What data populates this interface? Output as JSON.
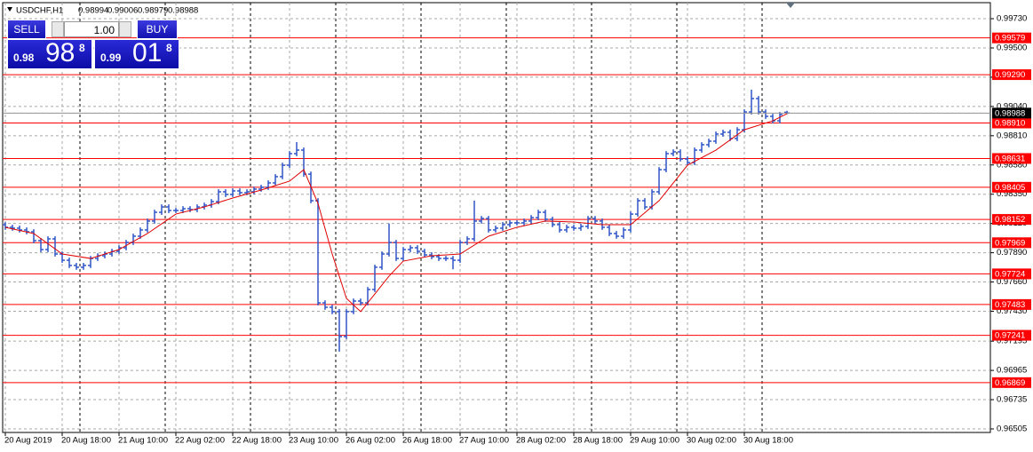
{
  "chart_data": {
    "type": "ohlc",
    "title": "USDCHF,H1",
    "categories": [
      "20 Aug 2019",
      null,
      null,
      null,
      null,
      null,
      null,
      null,
      "20 Aug 18:00",
      null,
      null,
      null,
      null,
      null,
      null,
      null,
      "21 Aug 10:00",
      null,
      null,
      null,
      null,
      null,
      null,
      null,
      "22 Aug 02:00",
      null,
      null,
      null,
      null,
      null,
      null,
      null,
      "22 Aug 18:00",
      null,
      null,
      null,
      null,
      null,
      null,
      null,
      "23 Aug 10:00",
      null,
      null,
      null,
      null,
      null,
      null,
      null,
      "26 Aug 02:00",
      null,
      null,
      null,
      null,
      null,
      null,
      null,
      "26 Aug 18:00",
      null,
      null,
      null,
      null,
      null,
      null,
      null,
      "27 Aug 10:00",
      null,
      null,
      null,
      null,
      null,
      null,
      null,
      "28 Aug 02:00",
      null,
      null,
      null,
      null,
      null,
      null,
      null,
      "28 Aug 18:00",
      null,
      null,
      null,
      null,
      null,
      null,
      null,
      "29 Aug 10:00",
      null,
      null,
      null,
      null,
      null,
      null,
      null,
      "30 Aug 02:00",
      null,
      null,
      null,
      null,
      null,
      null,
      null,
      "30 Aug 18:00",
      null,
      null,
      null,
      null,
      null,
      null
    ],
    "open": [
      0.9811,
      0.9809,
      0.98083,
      0.98069,
      0.98055,
      0.97985,
      0.97915,
      0.97999,
      0.9788,
      0.97831,
      0.9779,
      0.97776,
      0.9779,
      0.97845,
      0.97866,
      0.9788,
      0.97901,
      0.97929,
      0.97971,
      0.9802,
      0.98069,
      0.98139,
      0.98208,
      0.9825,
      0.98222,
      0.98222,
      0.98236,
      0.98229,
      0.9825,
      0.98264,
      0.98292,
      0.98369,
      0.98348,
      0.98376,
      0.98362,
      0.98369,
      0.9839,
      0.98404,
      0.98439,
      0.98488,
      0.98578,
      0.98669,
      0.98697,
      0.98508,
      0.98299,
      0.97496,
      0.97461,
      0.97427,
      0.97231,
      0.97427,
      0.9751,
      0.97496,
      0.97601,
      0.97776,
      0.9788,
      0.97971,
      0.97845,
      0.97915,
      0.97929,
      0.97901,
      0.97873,
      0.97859,
      0.97845,
      0.97845,
      0.97831,
      0.97971,
      0.97999,
      0.98139,
      0.98159,
      0.98069,
      0.98083,
      0.98111,
      0.98125,
      0.98125,
      0.98139,
      0.98166,
      0.98208,
      0.98153,
      0.98111,
      0.98069,
      0.9809,
      0.98083,
      0.98097,
      0.98159,
      0.98139,
      0.9809,
      0.98041,
      0.9802,
      0.98069,
      0.98194,
      0.98299,
      0.9825,
      0.98369,
      0.98543,
      0.98669,
      0.98683,
      0.98627,
      0.98599,
      0.98697,
      0.98739,
      0.98767,
      0.98823,
      0.98837,
      0.98788,
      0.98857,
      0.98997,
      0.99102,
      0.98997,
      0.98962,
      0.98927,
      0.98994
    ],
    "high": [
      0.9813,
      0.9811,
      0.98103,
      0.98089,
      0.98075,
      0.98005,
      0.98019,
      0.98019,
      0.979,
      0.97851,
      0.9781,
      0.9781,
      0.97865,
      0.97886,
      0.979,
      0.97921,
      0.97949,
      0.97991,
      0.9804,
      0.98089,
      0.98159,
      0.98228,
      0.9827,
      0.9827,
      0.98242,
      0.98256,
      0.98256,
      0.9827,
      0.98284,
      0.98312,
      0.98389,
      0.98389,
      0.98396,
      0.98396,
      0.98389,
      0.9841,
      0.98424,
      0.98459,
      0.98508,
      0.98598,
      0.98689,
      0.9876,
      0.98717,
      0.98528,
      0.98319,
      0.97516,
      0.97481,
      0.97447,
      0.97447,
      0.9753,
      0.9753,
      0.97621,
      0.97796,
      0.979,
      0.9812,
      0.97991,
      0.97935,
      0.97949,
      0.97949,
      0.97921,
      0.97893,
      0.97879,
      0.97865,
      0.97865,
      0.97991,
      0.98019,
      0.983,
      0.98179,
      0.98179,
      0.98103,
      0.98131,
      0.98145,
      0.98145,
      0.98159,
      0.98186,
      0.98228,
      0.98228,
      0.98173,
      0.98131,
      0.9811,
      0.9811,
      0.98117,
      0.98179,
      0.98179,
      0.98159,
      0.9811,
      0.98061,
      0.98089,
      0.98214,
      0.98319,
      0.98319,
      0.98389,
      0.98563,
      0.98689,
      0.98703,
      0.98703,
      0.98647,
      0.98717,
      0.98759,
      0.98787,
      0.98843,
      0.98857,
      0.98857,
      0.98877,
      0.99017,
      0.99172,
      0.99122,
      0.99017,
      0.98982,
      0.98996,
      0.99006
    ],
    "low": [
      0.9807,
      0.98063,
      0.98049,
      0.98035,
      0.97965,
      0.97895,
      0.97895,
      0.9786,
      0.97811,
      0.9777,
      0.97756,
      0.97756,
      0.9777,
      0.97825,
      0.97846,
      0.9786,
      0.97881,
      0.97909,
      0.97951,
      0.98,
      0.98049,
      0.98119,
      0.98188,
      0.98202,
      0.98202,
      0.98202,
      0.98209,
      0.98209,
      0.9823,
      0.98244,
      0.98272,
      0.98328,
      0.98328,
      0.98342,
      0.98342,
      0.98349,
      0.9837,
      0.98384,
      0.98419,
      0.98468,
      0.98558,
      0.98649,
      0.98488,
      0.98279,
      0.97476,
      0.97441,
      0.97407,
      0.97112,
      0.97211,
      0.97407,
      0.97476,
      0.97476,
      0.97581,
      0.97756,
      0.9786,
      0.97825,
      0.97825,
      0.97895,
      0.97881,
      0.97853,
      0.97839,
      0.97825,
      0.97825,
      0.9776,
      0.97811,
      0.97951,
      0.97979,
      0.98119,
      0.98049,
      0.98049,
      0.98063,
      0.98091,
      0.98105,
      0.98105,
      0.98119,
      0.98146,
      0.98133,
      0.98091,
      0.98049,
      0.98049,
      0.98063,
      0.98063,
      0.98077,
      0.98119,
      0.9807,
      0.98021,
      0.98,
      0.98,
      0.98049,
      0.98174,
      0.9823,
      0.9823,
      0.98349,
      0.98523,
      0.98649,
      0.98607,
      0.98579,
      0.98579,
      0.98677,
      0.98719,
      0.98747,
      0.98803,
      0.98768,
      0.98768,
      0.98837,
      0.98977,
      0.98977,
      0.98942,
      0.98907,
      0.98907,
      0.98979
    ],
    "close": [
      0.9809,
      0.98083,
      0.98069,
      0.98055,
      0.97985,
      0.97915,
      0.97999,
      0.9788,
      0.97831,
      0.9779,
      0.97776,
      0.9779,
      0.97845,
      0.97866,
      0.9788,
      0.97901,
      0.97929,
      0.97971,
      0.9802,
      0.98069,
      0.98139,
      0.98208,
      0.9825,
      0.98222,
      0.98222,
      0.98236,
      0.98229,
      0.9825,
      0.98264,
      0.98292,
      0.98369,
      0.98348,
      0.98376,
      0.98362,
      0.98369,
      0.9839,
      0.98404,
      0.98439,
      0.98488,
      0.98578,
      0.98669,
      0.98697,
      0.98508,
      0.98299,
      0.97496,
      0.97461,
      0.97427,
      0.97231,
      0.97427,
      0.9751,
      0.97496,
      0.97601,
      0.97776,
      0.9788,
      0.97971,
      0.97845,
      0.97915,
      0.97929,
      0.97901,
      0.97873,
      0.97859,
      0.97845,
      0.97845,
      0.97831,
      0.97971,
      0.97999,
      0.98139,
      0.98159,
      0.98069,
      0.98083,
      0.98111,
      0.98125,
      0.98125,
      0.98139,
      0.98166,
      0.98208,
      0.98153,
      0.98111,
      0.98069,
      0.9809,
      0.98083,
      0.98097,
      0.98159,
      0.98139,
      0.9809,
      0.98041,
      0.9802,
      0.98069,
      0.98194,
      0.98299,
      0.9825,
      0.98369,
      0.98543,
      0.98669,
      0.98683,
      0.98627,
      0.98599,
      0.98697,
      0.98739,
      0.98767,
      0.98823,
      0.98837,
      0.98788,
      0.98857,
      0.98997,
      0.99102,
      0.98997,
      0.98962,
      0.98927,
      0.98976,
      0.98988
    ],
    "color": "#2f56c8",
    "ylim": [
      0.96477,
      0.99856
    ],
    "yticks": [
      {
        "value": 0.9973,
        "label": "0.99730"
      },
      {
        "value": 0.995,
        "label": "0.99500"
      },
      {
        "value": 0.9927,
        "label": "0.99270"
      },
      {
        "value": 0.9904,
        "label": "0.99040"
      },
      {
        "value": 0.9881,
        "label": "0.98810"
      },
      {
        "value": 0.9858,
        "label": "0.98580"
      },
      {
        "value": 0.9835,
        "label": "0.98350"
      },
      {
        "value": 0.9812,
        "label": "0.98120"
      },
      {
        "value": 0.9789,
        "label": "0.97890"
      },
      {
        "value": 0.9766,
        "label": "0.97660"
      },
      {
        "value": 0.9743,
        "label": "0.97430"
      },
      0.97195,
      0.96965,
      0.96735,
      0.96505
    ],
    "grid": true,
    "grid_color": "#a8a8a8",
    "moving_average": {
      "color": "#e00000",
      "x": [
        0,
        4,
        8,
        12,
        16,
        20,
        24,
        28,
        32,
        36,
        40,
        42,
        44,
        46,
        48,
        50,
        52,
        54,
        56,
        60,
        64,
        68,
        72,
        76,
        80,
        84,
        88,
        92,
        96,
        100,
        104,
        108,
        110
      ],
      "values": [
        0.9809,
        0.98041,
        0.9788,
        0.97845,
        0.97915,
        0.98041,
        0.98194,
        0.9825,
        0.9832,
        0.98383,
        0.98453,
        0.98543,
        0.98278,
        0.9788,
        0.97531,
        0.97427,
        0.97566,
        0.97706,
        0.97824,
        0.97866,
        0.9788,
        0.9802,
        0.9809,
        0.98139,
        0.98132,
        0.98111,
        0.98111,
        0.98299,
        0.98578,
        0.98697,
        0.98857,
        0.98927,
        0.98983
      ]
    },
    "levels": [
      0.99579,
      {
        "value": 0.9929,
        "label": "0.99290"
      },
      {
        "value": 0.9891,
        "label": "0.98910"
      },
      0.98631,
      0.98405,
      0.98152,
      0.97969,
      0.97724,
      0.97483,
      0.97241,
      0.96869
    ],
    "level_color": "#ff0000"
  },
  "trade_panel": {
    "sell": "SELL",
    "buy": "BUY",
    "lot": "1.00",
    "bid": {
      "big": "0.98",
      "pips": "98",
      "point": "8"
    },
    "ask": {
      "big": "0.99",
      "pips": "01",
      "point": "8"
    }
  }
}
